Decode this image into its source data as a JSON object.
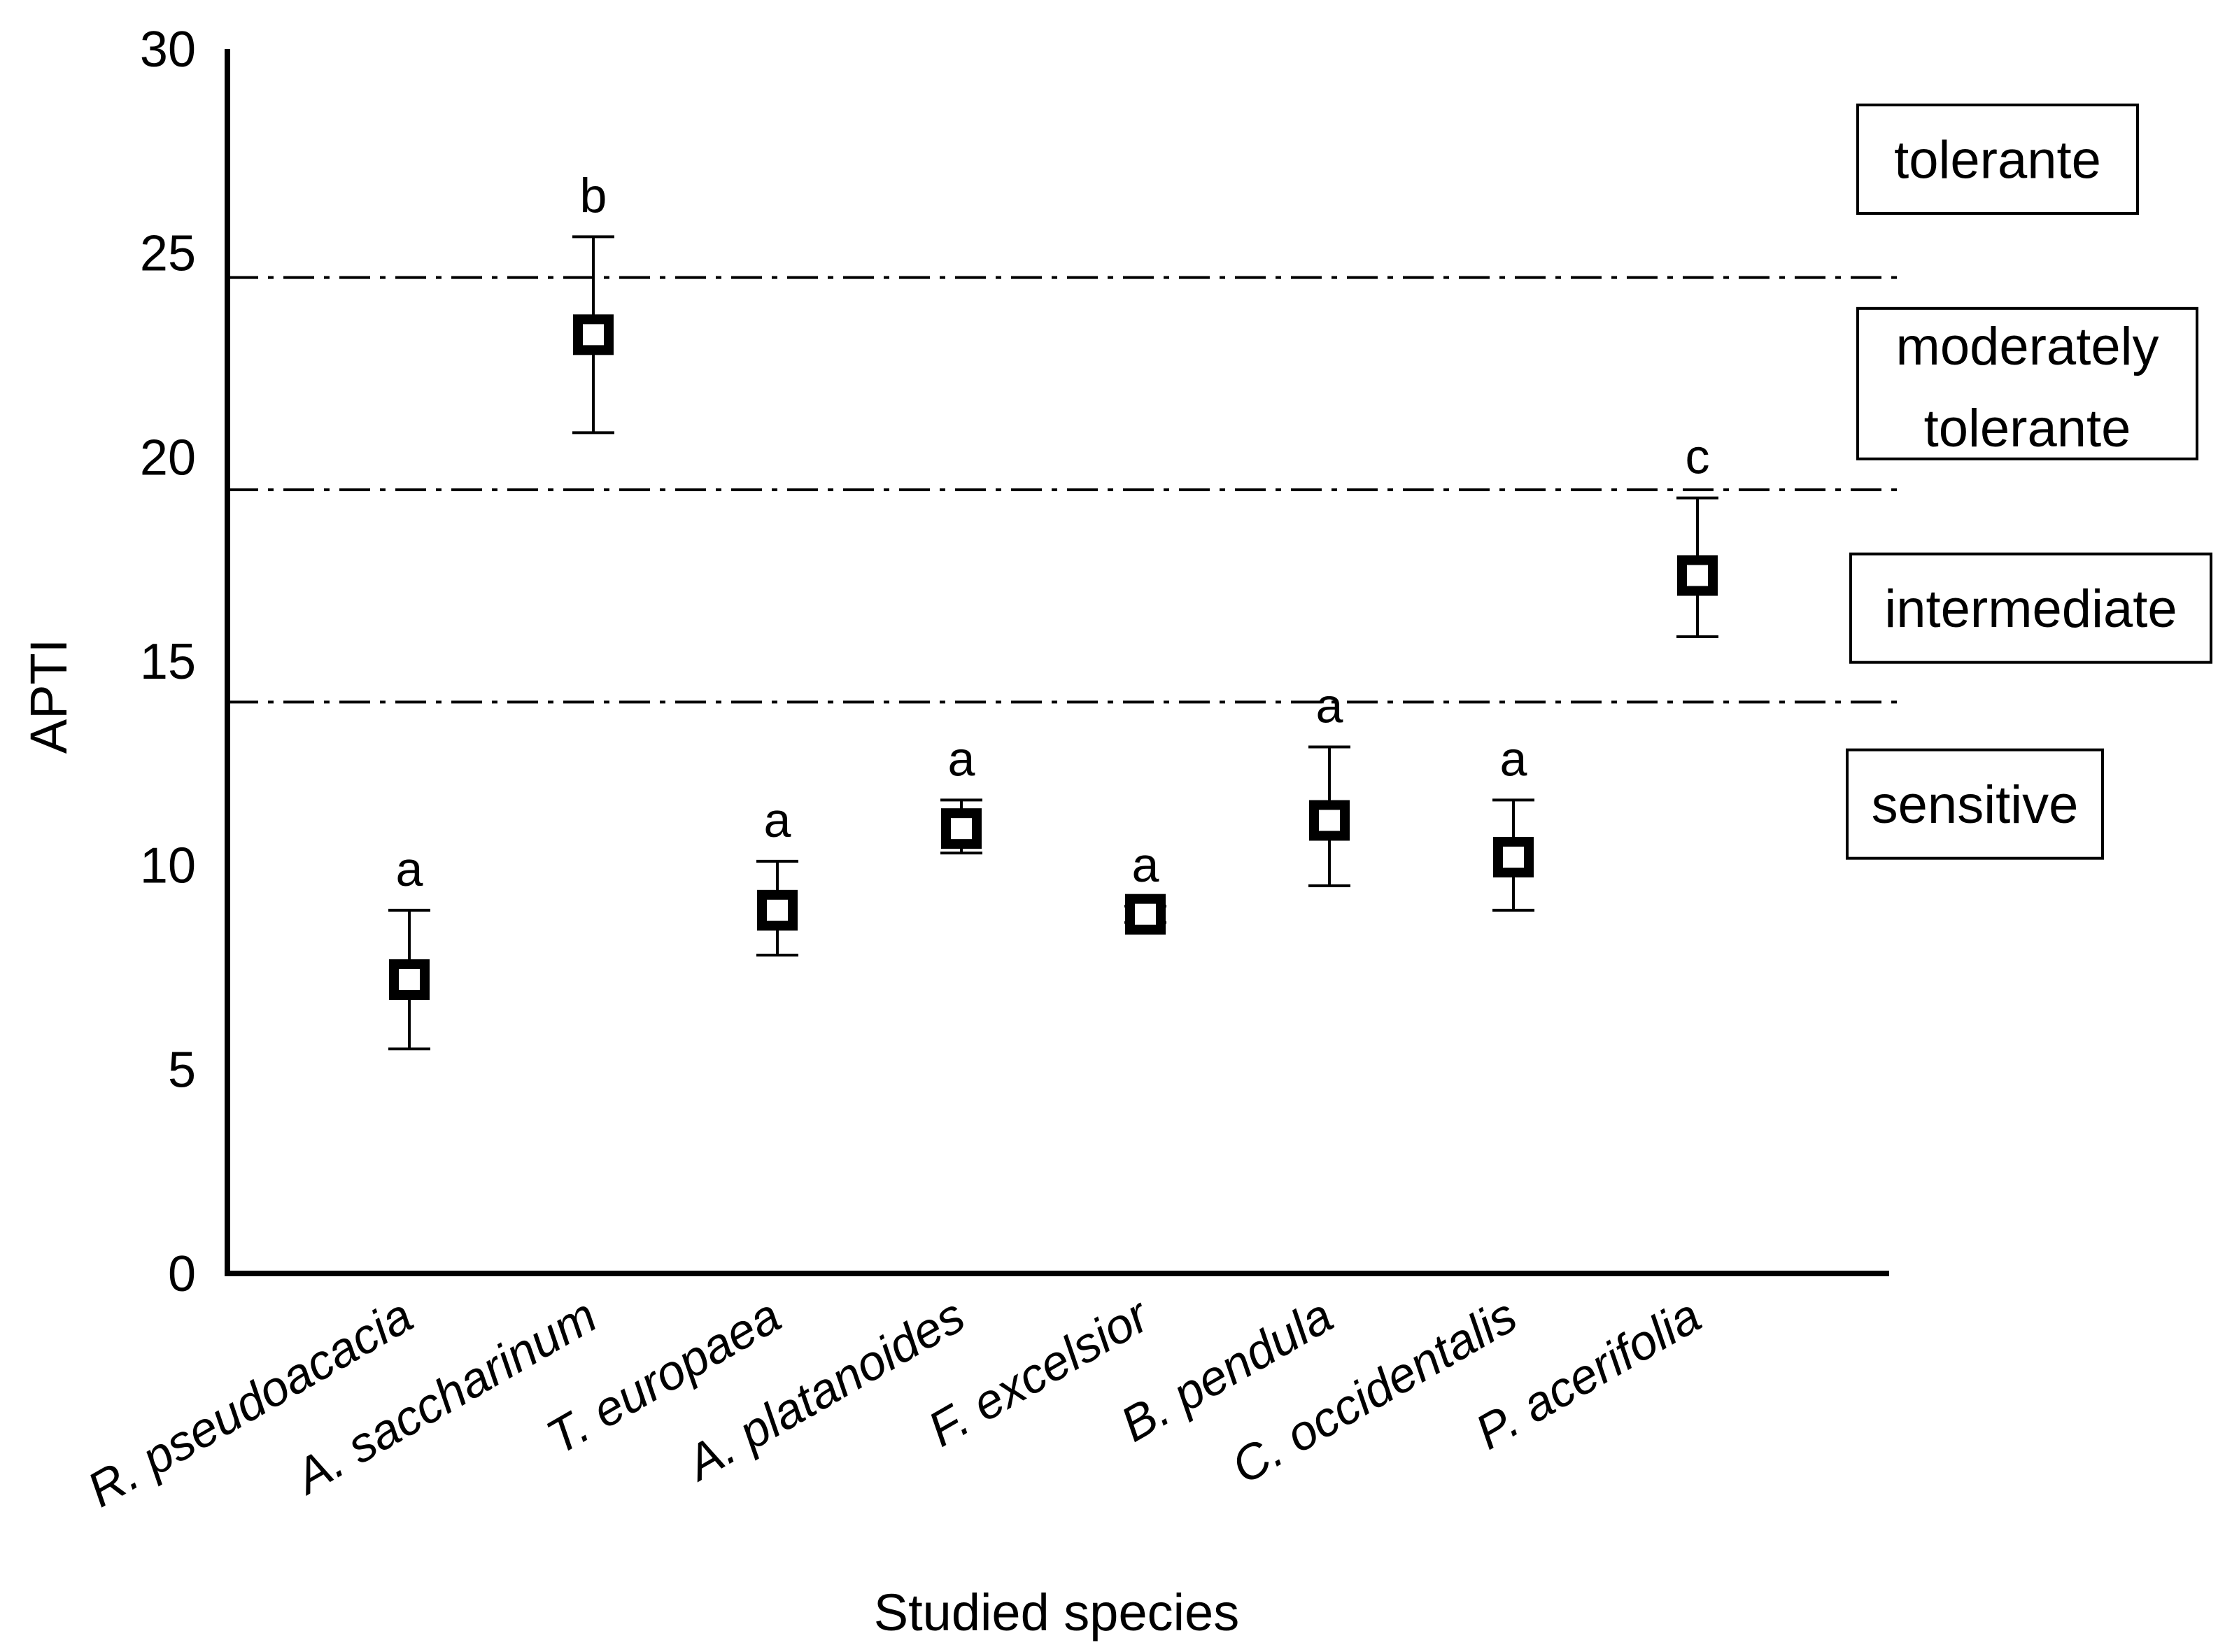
{
  "chart_data": {
    "type": "scatter",
    "xlabel": "Studied species",
    "ylabel": "APTI",
    "ylim": [
      0,
      30
    ],
    "yticks": [
      "0",
      "5",
      "10",
      "15",
      "20",
      "25",
      "30"
    ],
    "categories": [
      "R. pseudoacacia",
      "A. saccharinum",
      "T. europaea",
      "A. platanoides",
      "F. excelsior",
      "B. pendula",
      "C. occidentalis",
      "P. acerifolia"
    ],
    "values": [
      7.2,
      23.0,
      8.9,
      10.9,
      8.8,
      11.1,
      10.2,
      17.1
    ],
    "error_low": [
      5.5,
      20.6,
      7.8,
      10.3,
      8.6,
      9.5,
      8.9,
      15.6
    ],
    "error_high": [
      8.9,
      25.4,
      10.1,
      11.6,
      9.0,
      12.9,
      11.6,
      19.0
    ],
    "significance": [
      "a",
      "b",
      "a",
      "a",
      "a",
      "a",
      "a",
      "c"
    ],
    "thresholds": [
      14.0,
      19.2,
      24.4
    ],
    "zones": [
      {
        "label_lines": [
          "tolerante"
        ],
        "level": 27.3
      },
      {
        "label_lines": [
          "moderately",
          "tolerante"
        ],
        "level": 21.8
      },
      {
        "label_lines": [
          "intermediate"
        ],
        "level": 16.3
      },
      {
        "label_lines": [
          "sensitive"
        ],
        "level": 11.5
      }
    ]
  }
}
